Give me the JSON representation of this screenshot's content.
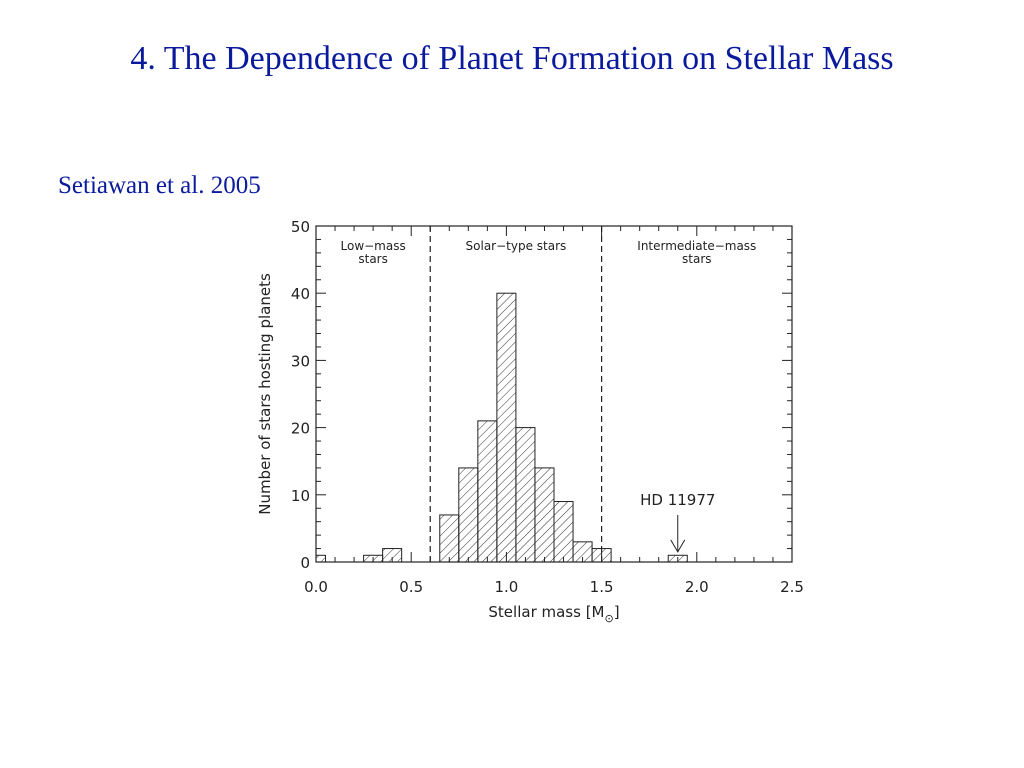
{
  "slide": {
    "title": "4. The Dependence of Planet Formation on Stellar Mass",
    "citation": "Setiawan et al. 2005"
  },
  "chart_data": {
    "type": "bar",
    "xlabel": "Stellar mass [M",
    "xlabel_subscript": "⊙",
    "xlabel_close": "]",
    "ylabel": "Number of stars hosting planets",
    "xlim": [
      0.0,
      2.5
    ],
    "ylim": [
      0,
      50
    ],
    "xticks": [
      "0.0",
      "0.5",
      "1.0",
      "1.5",
      "2.0",
      "2.5"
    ],
    "yticks": [
      "0",
      "10",
      "20",
      "30",
      "40",
      "50"
    ],
    "bin_width": 0.1,
    "bins": [
      {
        "x0": 0.0,
        "x1": 0.05,
        "value": 1
      },
      {
        "x0": 0.25,
        "x1": 0.35,
        "value": 1
      },
      {
        "x0": 0.35,
        "x1": 0.45,
        "value": 2
      },
      {
        "x0": 0.65,
        "x1": 0.75,
        "value": 7
      },
      {
        "x0": 0.75,
        "x1": 0.85,
        "value": 14
      },
      {
        "x0": 0.85,
        "x1": 0.95,
        "value": 21
      },
      {
        "x0": 0.95,
        "x1": 1.05,
        "value": 40
      },
      {
        "x0": 1.05,
        "x1": 1.15,
        "value": 20
      },
      {
        "x0": 1.15,
        "x1": 1.25,
        "value": 14
      },
      {
        "x0": 1.25,
        "x1": 1.35,
        "value": 9
      },
      {
        "x0": 1.35,
        "x1": 1.45,
        "value": 3
      },
      {
        "x0": 1.45,
        "x1": 1.55,
        "value": 2
      },
      {
        "x0": 1.85,
        "x1": 1.95,
        "value": 1
      }
    ],
    "boundaries": [
      0.6,
      1.5
    ],
    "regions": [
      {
        "lines": [
          "Low−mass",
          "stars"
        ],
        "x_center": 0.3
      },
      {
        "lines": [
          "Solar−type stars"
        ],
        "x_center": 1.05
      },
      {
        "lines": [
          "Intermediate−mass",
          "stars"
        ],
        "x_center": 2.0
      }
    ],
    "annotation": {
      "text": "HD 11977",
      "x": 1.9,
      "y_text": 8.5,
      "arrow_from": 7,
      "arrow_to": 1.5
    }
  }
}
